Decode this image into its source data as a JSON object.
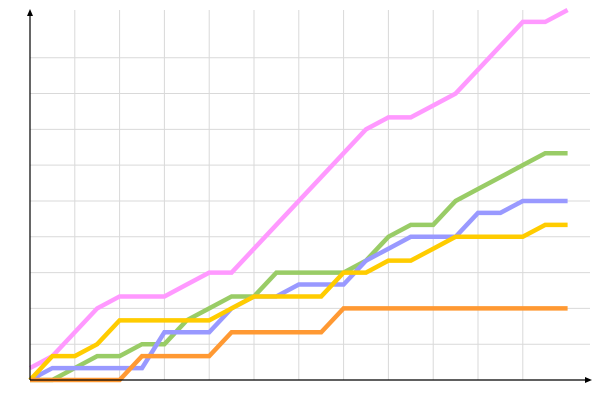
{
  "chart_data": {
    "type": "line",
    "title": "",
    "xlabel": "",
    "ylabel": "",
    "x": [
      0,
      1,
      2,
      3,
      4,
      5,
      6,
      7,
      8,
      9,
      10,
      11,
      12,
      13,
      14,
      15,
      16,
      17,
      18,
      19,
      20,
      21,
      22,
      23,
      24
    ],
    "xlim": [
      0,
      24
    ],
    "ylim": [
      0,
      31
    ],
    "grid": true,
    "legend": "none",
    "series": [
      {
        "color": "#ff99ff",
        "values": [
          1,
          2,
          4,
          6,
          7,
          7,
          7,
          8,
          9,
          9,
          11,
          13,
          15,
          17,
          19,
          21,
          22,
          22,
          23,
          24,
          26,
          28,
          30,
          30,
          31
        ]
      },
      {
        "color": "#99cc66",
        "values": [
          0,
          0,
          1,
          2,
          2,
          3,
          3,
          5,
          6,
          7,
          7,
          9,
          9,
          9,
          9,
          10,
          12,
          13,
          13,
          15,
          16,
          17,
          18,
          19,
          19
        ]
      },
      {
        "color": "#9999ff",
        "values": [
          0,
          1,
          1,
          1,
          1,
          1,
          4,
          4,
          4,
          6,
          7,
          7,
          8,
          8,
          8,
          10,
          11,
          12,
          12,
          12,
          14,
          14,
          15,
          15,
          15
        ]
      },
      {
        "color": "#ffcc00",
        "values": [
          0,
          2,
          2,
          3,
          5,
          5,
          5,
          5,
          5,
          6,
          7,
          7,
          7,
          7,
          9,
          9,
          10,
          10,
          11,
          12,
          12,
          12,
          12,
          13,
          13
        ]
      },
      {
        "color": "#ff9933",
        "values": [
          0,
          0,
          0,
          0,
          0,
          2,
          2,
          2,
          2,
          4,
          4,
          4,
          4,
          4,
          6,
          6,
          6,
          6,
          6,
          6,
          6,
          6,
          6,
          6,
          6
        ]
      }
    ]
  }
}
